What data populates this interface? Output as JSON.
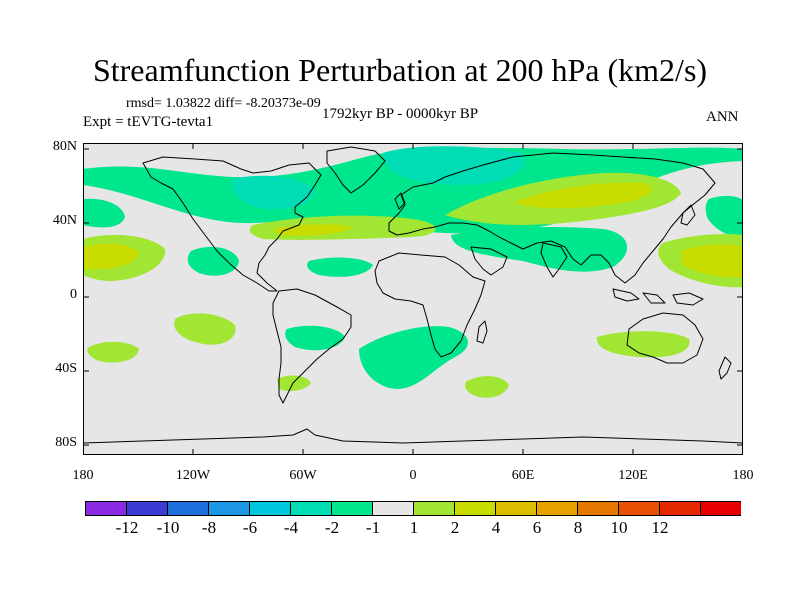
{
  "title": "Streamfunction Perturbation at 200 hPa (km2/s)",
  "stats": "rmsd= 1.03822 diff= -8.20373e-09",
  "period": "1792kyr BP - 0000kyr BP",
  "experiment": "Expt = tEVTG-tevta1",
  "season": "ANN",
  "map": {
    "background_color": "#e6e6e6",
    "lat_labels": [
      "80N",
      "40N",
      "0",
      "40S",
      "80S"
    ],
    "lon_labels": [
      "180",
      "120W",
      "60W",
      "0",
      "60E",
      "120E",
      "180"
    ]
  },
  "colorbar": {
    "colors": [
      "#8a2be2",
      "#3c3cd2",
      "#1e6edc",
      "#1e96e6",
      "#00c8dc",
      "#00dcb4",
      "#00e68c",
      "#e6e6e6",
      "#a0e632",
      "#c8dc00",
      "#dcbe00",
      "#e6a000",
      "#e67800",
      "#e65000",
      "#e62800",
      "#e60000"
    ],
    "labels": [
      "-12",
      "-10",
      "-8",
      "-6",
      "-4",
      "-2",
      "-1",
      "1",
      "2",
      "4",
      "6",
      "8",
      "10",
      "12"
    ]
  }
}
